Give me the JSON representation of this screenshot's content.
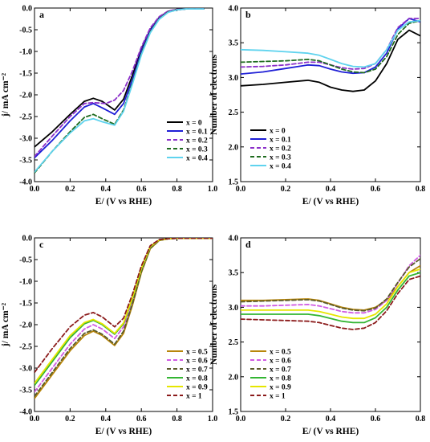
{
  "chart_data": [
    {
      "type": "line",
      "panel_label": "a",
      "xlabel": "E/ (V vs RHE)",
      "ylabel": "j/ mA cm⁻²",
      "xlim": [
        0.0,
        1.0
      ],
      "ylim": [
        -4.0,
        0.0
      ],
      "xticks": [
        "0.0",
        "0.2",
        "0.4",
        "0.6",
        "0.8",
        "1.0"
      ],
      "yticks": [
        "0.0",
        "-0.5",
        "-1.0",
        "-1.5",
        "-2.0",
        "-2.5",
        "-3.0",
        "-3.5",
        "-4.0"
      ],
      "legend_position": "lower-right",
      "series": [
        {
          "name": "x = 0",
          "color": "#000000",
          "dash": "solid",
          "x": [
            0.0,
            0.1,
            0.2,
            0.28,
            0.33,
            0.38,
            0.45,
            0.5,
            0.55,
            0.6,
            0.65,
            0.7,
            0.75,
            0.8,
            0.85,
            0.9,
            0.95
          ],
          "y": [
            -3.2,
            -2.85,
            -2.45,
            -2.15,
            -2.08,
            -2.15,
            -2.35,
            -2.1,
            -1.55,
            -0.95,
            -0.5,
            -0.22,
            -0.08,
            -0.03,
            -0.02,
            -0.02,
            -0.02
          ]
        },
        {
          "name": "x = 0.1",
          "color": "#1f1fd6",
          "dash": "solid",
          "x": [
            0.0,
            0.1,
            0.2,
            0.28,
            0.33,
            0.38,
            0.45,
            0.5,
            0.55,
            0.6,
            0.65,
            0.7,
            0.75,
            0.8,
            0.85,
            0.9,
            0.95
          ],
          "y": [
            -3.45,
            -3.05,
            -2.6,
            -2.28,
            -2.2,
            -2.3,
            -2.45,
            -2.2,
            -1.65,
            -1.0,
            -0.52,
            -0.24,
            -0.09,
            -0.04,
            -0.02,
            -0.02,
            -0.02
          ]
        },
        {
          "name": "x = 0.2",
          "color": "#8b2fc9",
          "dash": "dashed",
          "x": [
            0.0,
            0.1,
            0.2,
            0.28,
            0.33,
            0.4,
            0.45,
            0.5,
            0.55,
            0.6,
            0.65,
            0.7,
            0.75,
            0.8,
            0.85,
            0.9,
            0.95
          ],
          "y": [
            -3.42,
            -2.95,
            -2.5,
            -2.2,
            -2.18,
            -2.2,
            -2.12,
            -1.9,
            -1.45,
            -0.9,
            -0.46,
            -0.2,
            -0.07,
            -0.03,
            -0.02,
            -0.02,
            -0.02
          ]
        },
        {
          "name": "x = 0.3",
          "color": "#1f6b1f",
          "dash": "dashed",
          "x": [
            0.0,
            0.1,
            0.2,
            0.28,
            0.33,
            0.38,
            0.45,
            0.5,
            0.55,
            0.6,
            0.65,
            0.7,
            0.75,
            0.8,
            0.85,
            0.9,
            0.95
          ],
          "y": [
            -3.8,
            -3.3,
            -2.85,
            -2.52,
            -2.45,
            -2.55,
            -2.68,
            -2.35,
            -1.72,
            -1.05,
            -0.55,
            -0.25,
            -0.09,
            -0.04,
            -0.02,
            -0.02,
            -0.02
          ]
        },
        {
          "name": "x = 0.4",
          "color": "#5fd3ee",
          "dash": "solid",
          "x": [
            0.0,
            0.1,
            0.2,
            0.28,
            0.33,
            0.38,
            0.45,
            0.5,
            0.55,
            0.6,
            0.65,
            0.7,
            0.75,
            0.8,
            0.85,
            0.9,
            0.95
          ],
          "y": [
            -3.78,
            -3.3,
            -2.88,
            -2.6,
            -2.55,
            -2.62,
            -2.7,
            -2.38,
            -1.75,
            -1.08,
            -0.57,
            -0.26,
            -0.1,
            -0.04,
            -0.02,
            -0.02,
            -0.02
          ]
        }
      ]
    },
    {
      "type": "line",
      "panel_label": "b",
      "xlabel": "E/ (V vs RHE)",
      "ylabel": "Number of electrons",
      "xlim": [
        0.0,
        0.8
      ],
      "ylim": [
        1.5,
        4.0
      ],
      "xticks": [
        "0.0",
        "0.2",
        "0.4",
        "0.6",
        "0.8"
      ],
      "yticks": [
        "1.5",
        "2.0",
        "2.5",
        "3.0",
        "3.5",
        "4.0"
      ],
      "legend_position": "lower-left",
      "series": [
        {
          "name": "x = 0",
          "color": "#000000",
          "dash": "solid",
          "x": [
            0.0,
            0.1,
            0.2,
            0.3,
            0.35,
            0.4,
            0.45,
            0.5,
            0.55,
            0.6,
            0.65,
            0.7,
            0.75,
            0.8
          ],
          "y": [
            2.88,
            2.9,
            2.93,
            2.96,
            2.93,
            2.86,
            2.82,
            2.8,
            2.82,
            2.95,
            3.2,
            3.55,
            3.68,
            3.6
          ]
        },
        {
          "name": "x = 0.1",
          "color": "#1f1fd6",
          "dash": "solid",
          "x": [
            0.0,
            0.1,
            0.2,
            0.3,
            0.35,
            0.4,
            0.45,
            0.5,
            0.55,
            0.6,
            0.65,
            0.7,
            0.75,
            0.8
          ],
          "y": [
            3.05,
            3.08,
            3.13,
            3.18,
            3.17,
            3.12,
            3.08,
            3.06,
            3.07,
            3.15,
            3.35,
            3.7,
            3.85,
            3.8
          ]
        },
        {
          "name": "x = 0.2",
          "color": "#8b2fc9",
          "dash": "dashed",
          "x": [
            0.0,
            0.1,
            0.2,
            0.3,
            0.35,
            0.4,
            0.45,
            0.5,
            0.55,
            0.6,
            0.65,
            0.7,
            0.75,
            0.8
          ],
          "y": [
            3.15,
            3.16,
            3.18,
            3.22,
            3.22,
            3.18,
            3.14,
            3.12,
            3.13,
            3.2,
            3.4,
            3.72,
            3.85,
            3.85
          ]
        },
        {
          "name": "x = 0.3",
          "color": "#1f6b1f",
          "dash": "dashed",
          "x": [
            0.0,
            0.1,
            0.2,
            0.3,
            0.35,
            0.4,
            0.45,
            0.5,
            0.55,
            0.6,
            0.65,
            0.7,
            0.75,
            0.8
          ],
          "y": [
            3.22,
            3.23,
            3.24,
            3.26,
            3.24,
            3.18,
            3.12,
            3.08,
            3.07,
            3.12,
            3.3,
            3.62,
            3.78,
            3.82
          ]
        },
        {
          "name": "x = 0.4",
          "color": "#5fd3ee",
          "dash": "solid",
          "x": [
            0.0,
            0.1,
            0.2,
            0.3,
            0.35,
            0.4,
            0.45,
            0.5,
            0.55,
            0.6,
            0.65,
            0.7,
            0.75,
            0.8
          ],
          "y": [
            3.4,
            3.39,
            3.37,
            3.35,
            3.32,
            3.26,
            3.2,
            3.16,
            3.15,
            3.2,
            3.4,
            3.68,
            3.8,
            3.82
          ]
        }
      ]
    },
    {
      "type": "line",
      "panel_label": "c",
      "xlabel": "E/ (V vs RHE)",
      "ylabel": "j/ mA cm⁻²",
      "xlim": [
        0.0,
        1.0
      ],
      "ylim": [
        -4.0,
        0.0
      ],
      "xticks": [
        "0.0",
        "0.2",
        "0.4",
        "0.6",
        "0.8",
        "1.0"
      ],
      "yticks": [
        "0.0",
        "-0.5",
        "-1.0",
        "-1.5",
        "-2.0",
        "-2.5",
        "-3.0",
        "-3.5",
        "-4.0"
      ],
      "legend_position": "lower-right",
      "series": [
        {
          "name": "x = 0.5",
          "color": "#b8860b",
          "dash": "solid",
          "x": [
            0.0,
            0.1,
            0.2,
            0.28,
            0.33,
            0.38,
            0.45,
            0.5,
            0.55,
            0.6,
            0.65,
            0.7,
            0.75,
            0.8,
            0.9,
            1.0
          ],
          "y": [
            -3.7,
            -3.15,
            -2.6,
            -2.25,
            -2.15,
            -2.25,
            -2.48,
            -2.2,
            -1.55,
            -0.8,
            -0.25,
            -0.06,
            -0.02,
            -0.01,
            -0.01,
            -0.01
          ]
        },
        {
          "name": "x = 0.6",
          "color": "#d05ce3",
          "dash": "dashed",
          "x": [
            0.0,
            0.1,
            0.2,
            0.28,
            0.33,
            0.38,
            0.45,
            0.5,
            0.55,
            0.6,
            0.65,
            0.7,
            0.75,
            0.8,
            0.9,
            1.0
          ],
          "y": [
            -3.55,
            -3.0,
            -2.45,
            -2.1,
            -2.0,
            -2.1,
            -2.32,
            -2.05,
            -1.45,
            -0.75,
            -0.22,
            -0.05,
            -0.02,
            -0.01,
            -0.01,
            -0.01
          ]
        },
        {
          "name": "x = 0.7",
          "color": "#5a5a2a",
          "dash": "dashed",
          "x": [
            0.0,
            0.1,
            0.2,
            0.28,
            0.33,
            0.38,
            0.45,
            0.5,
            0.55,
            0.6,
            0.65,
            0.7,
            0.75,
            0.8,
            0.9,
            1.0
          ],
          "y": [
            -3.65,
            -3.1,
            -2.55,
            -2.2,
            -2.12,
            -2.22,
            -2.45,
            -2.15,
            -1.52,
            -0.78,
            -0.24,
            -0.06,
            -0.02,
            -0.01,
            -0.01,
            -0.01
          ]
        },
        {
          "name": "x = 0.8",
          "color": "#33b533",
          "dash": "solid",
          "x": [
            0.0,
            0.1,
            0.2,
            0.28,
            0.33,
            0.38,
            0.45,
            0.5,
            0.55,
            0.6,
            0.65,
            0.7,
            0.75,
            0.8,
            0.9,
            1.0
          ],
          "y": [
            -3.4,
            -2.85,
            -2.3,
            -1.98,
            -1.9,
            -2.0,
            -2.22,
            -1.98,
            -1.4,
            -0.72,
            -0.21,
            -0.05,
            -0.02,
            -0.01,
            -0.01,
            -0.01
          ]
        },
        {
          "name": "x = 0.9",
          "color": "#e6e600",
          "dash": "solid",
          "x": [
            0.0,
            0.1,
            0.2,
            0.28,
            0.33,
            0.38,
            0.45,
            0.5,
            0.55,
            0.6,
            0.65,
            0.7,
            0.75,
            0.8,
            0.9,
            1.0
          ],
          "y": [
            -3.35,
            -2.8,
            -2.25,
            -1.95,
            -1.88,
            -1.98,
            -2.2,
            -1.96,
            -1.38,
            -0.7,
            -0.2,
            -0.05,
            -0.02,
            -0.01,
            -0.01,
            -0.01
          ]
        },
        {
          "name": "x = 1",
          "color": "#8b1a1a",
          "dash": "dashed",
          "x": [
            0.0,
            0.1,
            0.2,
            0.28,
            0.33,
            0.38,
            0.45,
            0.5,
            0.55,
            0.6,
            0.65,
            0.7,
            0.75,
            0.8,
            0.9,
            1.0
          ],
          "y": [
            -3.1,
            -2.55,
            -2.05,
            -1.78,
            -1.72,
            -1.82,
            -2.05,
            -1.85,
            -1.3,
            -0.65,
            -0.18,
            -0.04,
            -0.02,
            -0.01,
            -0.01,
            -0.01
          ]
        }
      ]
    },
    {
      "type": "line",
      "panel_label": "d",
      "xlabel": "E/ (V vs RHE)",
      "ylabel": "Number of electrons",
      "xlim": [
        0.0,
        0.8
      ],
      "ylim": [
        1.5,
        4.0
      ],
      "xticks": [
        "0.0",
        "0.2",
        "0.4",
        "0.6",
        "0.8"
      ],
      "yticks": [
        "1.5",
        "2.0",
        "2.5",
        "3.0",
        "3.5",
        "4.0"
      ],
      "legend_position": "lower-left",
      "series": [
        {
          "name": "x = 0.5",
          "color": "#b8860b",
          "dash": "solid",
          "x": [
            0.0,
            0.1,
            0.2,
            0.3,
            0.35,
            0.4,
            0.45,
            0.5,
            0.55,
            0.6,
            0.65,
            0.7,
            0.75,
            0.8
          ],
          "y": [
            3.1,
            3.1,
            3.11,
            3.12,
            3.1,
            3.05,
            3.0,
            2.97,
            2.96,
            3.0,
            3.1,
            3.3,
            3.5,
            3.6
          ]
        },
        {
          "name": "x = 0.6",
          "color": "#d05ce3",
          "dash": "dashed",
          "x": [
            0.0,
            0.1,
            0.2,
            0.3,
            0.35,
            0.4,
            0.45,
            0.5,
            0.55,
            0.6,
            0.65,
            0.7,
            0.75,
            0.8
          ],
          "y": [
            3.02,
            3.02,
            3.03,
            3.04,
            3.02,
            2.98,
            2.94,
            2.92,
            2.92,
            2.97,
            3.1,
            3.35,
            3.6,
            3.75
          ]
        },
        {
          "name": "x = 0.7",
          "color": "#5a5a2a",
          "dash": "dashed",
          "x": [
            0.0,
            0.1,
            0.2,
            0.3,
            0.35,
            0.4,
            0.45,
            0.5,
            0.55,
            0.6,
            0.65,
            0.7,
            0.75,
            0.8
          ],
          "y": [
            3.08,
            3.09,
            3.1,
            3.11,
            3.09,
            3.04,
            2.99,
            2.96,
            2.95,
            2.99,
            3.12,
            3.36,
            3.58,
            3.7
          ]
        },
        {
          "name": "x = 0.8",
          "color": "#33b533",
          "dash": "solid",
          "x": [
            0.0,
            0.1,
            0.2,
            0.3,
            0.35,
            0.4,
            0.45,
            0.5,
            0.55,
            0.6,
            0.65,
            0.7,
            0.75,
            0.8
          ],
          "y": [
            2.9,
            2.9,
            2.9,
            2.9,
            2.88,
            2.84,
            2.8,
            2.78,
            2.78,
            2.85,
            3.0,
            3.25,
            3.45,
            3.5
          ]
        },
        {
          "name": "x = 0.9",
          "color": "#e6e600",
          "dash": "solid",
          "x": [
            0.0,
            0.1,
            0.2,
            0.3,
            0.35,
            0.4,
            0.45,
            0.5,
            0.55,
            0.6,
            0.65,
            0.7,
            0.75,
            0.8
          ],
          "y": [
            2.96,
            2.96,
            2.96,
            2.96,
            2.94,
            2.9,
            2.86,
            2.84,
            2.84,
            2.9,
            3.05,
            3.3,
            3.5,
            3.55
          ]
        },
        {
          "name": "x = 1",
          "color": "#8b1a1a",
          "dash": "dashed",
          "x": [
            0.0,
            0.1,
            0.2,
            0.3,
            0.35,
            0.4,
            0.45,
            0.5,
            0.55,
            0.6,
            0.65,
            0.7,
            0.75,
            0.8
          ],
          "y": [
            2.83,
            2.82,
            2.81,
            2.8,
            2.78,
            2.74,
            2.7,
            2.68,
            2.7,
            2.78,
            2.95,
            3.2,
            3.4,
            3.45
          ]
        }
      ]
    }
  ]
}
